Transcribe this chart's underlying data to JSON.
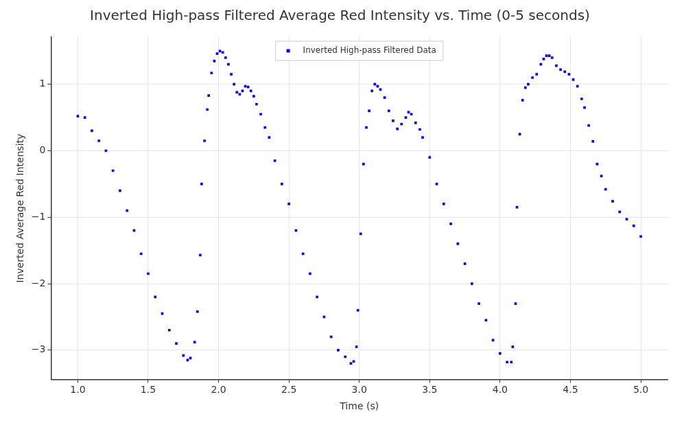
{
  "chart_data": {
    "type": "scatter",
    "title": "Inverted High-pass Filtered Average Red Intensity vs. Time (0-5 seconds)",
    "xlabel": "Time (s)",
    "ylabel": "Inverted Average Red Intensity",
    "xlim": [
      0.81,
      5.19
    ],
    "ylim": [
      -3.44,
      1.71
    ],
    "xticks": [
      {
        "value": 1,
        "label": "1.0"
      },
      {
        "value": 1.5,
        "label": "1.5"
      },
      {
        "value": 2,
        "label": "2.0"
      },
      {
        "value": 2.5,
        "label": "2.5"
      },
      {
        "value": 3,
        "label": "3.0"
      },
      {
        "value": 3.5,
        "label": "3.5"
      },
      {
        "value": 4,
        "label": "4.0"
      },
      {
        "value": 4.5,
        "label": "4.5"
      },
      {
        "value": 5,
        "label": "5.0"
      }
    ],
    "yticks": [
      {
        "value": -3,
        "label": "−3"
      },
      {
        "value": -2,
        "label": "−2"
      },
      {
        "value": -1,
        "label": "−1"
      },
      0,
      1
    ],
    "grid": true,
    "legend": "top",
    "marker": "square",
    "series": [
      {
        "name": "Inverted High-pass Filtered Data",
        "color": "#0000ff",
        "x": [
          1.0,
          1.05,
          1.1,
          1.15,
          1.2,
          1.25,
          1.3,
          1.35,
          1.4,
          1.45,
          1.5,
          1.55,
          1.6,
          1.65,
          1.7,
          1.75,
          1.78,
          1.8,
          1.83,
          1.85,
          1.87,
          1.88,
          1.9,
          1.92,
          1.93,
          1.95,
          1.97,
          1.99,
          2.01,
          2.03,
          2.05,
          2.07,
          2.09,
          2.11,
          2.13,
          2.15,
          2.17,
          2.19,
          2.21,
          2.23,
          2.25,
          2.27,
          2.3,
          2.33,
          2.36,
          2.4,
          2.45,
          2.5,
          2.55,
          2.6,
          2.65,
          2.7,
          2.75,
          2.8,
          2.85,
          2.9,
          2.94,
          2.96,
          2.98,
          2.99,
          3.01,
          3.03,
          3.05,
          3.07,
          3.09,
          3.11,
          3.13,
          3.15,
          3.18,
          3.21,
          3.24,
          3.27,
          3.3,
          3.33,
          3.35,
          3.37,
          3.4,
          3.43,
          3.45,
          3.5,
          3.55,
          3.6,
          3.65,
          3.7,
          3.75,
          3.8,
          3.85,
          3.9,
          3.95,
          4.0,
          4.05,
          4.08,
          4.09,
          4.11,
          4.12,
          4.14,
          4.16,
          4.18,
          4.2,
          4.23,
          4.26,
          4.29,
          4.31,
          4.33,
          4.35,
          4.37,
          4.4,
          4.43,
          4.46,
          4.49,
          4.52,
          4.55,
          4.58,
          4.6,
          4.63,
          4.66,
          4.69,
          4.72,
          4.75,
          4.8,
          4.85,
          4.9,
          4.95,
          5.0
        ],
        "values": [
          0.52,
          0.5,
          0.3,
          0.15,
          0.0,
          -0.3,
          -0.6,
          -0.9,
          -1.2,
          -1.55,
          -1.85,
          -2.2,
          -2.45,
          -2.7,
          -2.9,
          -3.08,
          -3.15,
          -3.12,
          -2.88,
          -2.42,
          -1.57,
          -0.5,
          0.15,
          0.62,
          0.83,
          1.17,
          1.35,
          1.46,
          1.5,
          1.48,
          1.4,
          1.3,
          1.15,
          1.0,
          0.88,
          0.85,
          0.9,
          0.97,
          0.96,
          0.9,
          0.82,
          0.7,
          0.55,
          0.35,
          0.2,
          -0.15,
          -0.5,
          -0.8,
          -1.2,
          -1.55,
          -1.85,
          -2.2,
          -2.5,
          -2.8,
          -3.0,
          -3.1,
          -3.2,
          -3.17,
          -2.95,
          -2.4,
          -1.25,
          -0.2,
          0.35,
          0.6,
          0.9,
          1.0,
          0.97,
          0.92,
          0.8,
          0.6,
          0.45,
          0.33,
          0.4,
          0.5,
          0.58,
          0.55,
          0.42,
          0.32,
          0.2,
          -0.1,
          -0.5,
          -0.8,
          -1.1,
          -1.4,
          -1.7,
          -2.0,
          -2.3,
          -2.55,
          -2.85,
          -3.05,
          -3.18,
          -3.18,
          -2.95,
          -2.3,
          -0.85,
          0.25,
          0.76,
          0.95,
          1.0,
          1.1,
          1.15,
          1.3,
          1.38,
          1.43,
          1.43,
          1.4,
          1.28,
          1.22,
          1.19,
          1.15,
          1.07,
          0.97,
          0.78,
          0.65,
          0.38,
          0.14,
          -0.2,
          -0.38,
          -0.58,
          -0.76,
          -0.92,
          -1.03,
          -1.13,
          -1.29
        ]
      }
    ]
  }
}
